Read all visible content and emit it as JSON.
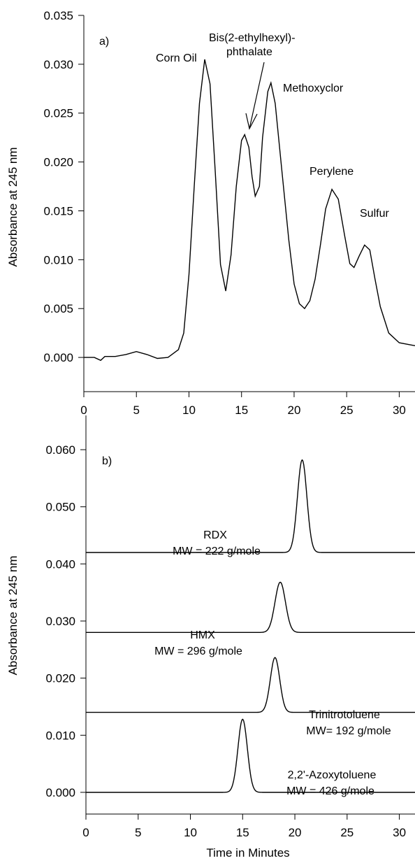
{
  "chart_data": [
    {
      "type": "line",
      "panel_label": "a)",
      "xlabel": "",
      "ylabel": "Absorbance at 245 nm",
      "xlim": [
        0,
        31.5
      ],
      "ylim": [
        -0.0035,
        0.035
      ],
      "xticks": [
        "0",
        "5",
        "10",
        "15",
        "20",
        "25",
        "30"
      ],
      "yticks": [
        "0.000",
        "0.005",
        "0.010",
        "0.015",
        "0.020",
        "0.025",
        "0.030",
        "0.035"
      ],
      "series": [
        {
          "x": [
            0,
            1,
            1.6,
            2,
            3,
            4,
            5,
            6,
            7,
            8,
            9,
            9.5,
            10,
            10.5,
            11,
            11.5,
            12,
            12.5,
            13,
            13.5,
            14,
            14.5,
            15,
            15.3,
            15.7,
            16,
            16.3,
            16.7,
            17,
            17.5,
            17.8,
            18.2,
            18.8,
            19.5,
            20,
            20.5,
            21,
            21.5,
            22,
            22.5,
            23,
            23.6,
            24.2,
            24.8,
            25.3,
            25.7,
            26.2,
            26.7,
            27.2,
            27.7,
            28.2,
            29,
            30,
            31.5
          ],
          "y": [
            0.0,
            0.0,
            -0.0003,
            0.0001,
            0.0001,
            0.0003,
            0.0006,
            0.0003,
            -0.0001,
            0.0,
            0.0008,
            0.0025,
            0.0085,
            0.0175,
            0.026,
            0.0305,
            0.028,
            0.019,
            0.0095,
            0.0068,
            0.0105,
            0.0175,
            0.0222,
            0.0228,
            0.0215,
            0.0185,
            0.0165,
            0.0175,
            0.0225,
            0.0272,
            0.0281,
            0.026,
            0.0195,
            0.012,
            0.0075,
            0.0055,
            0.005,
            0.0058,
            0.008,
            0.0115,
            0.0152,
            0.0172,
            0.0162,
            0.0125,
            0.0096,
            0.0092,
            0.0104,
            0.0115,
            0.011,
            0.008,
            0.0052,
            0.0025,
            0.0015,
            0.0012
          ]
        }
      ],
      "annotations": {
        "corn_oil": "Corn Oil",
        "bis_line1": "Bis(2-ethylhexyl)-",
        "bis_line2": "phthalate",
        "methoxyclor": "Methoxyclor",
        "perylene": "Perylene",
        "sulfur": "Sulfur"
      }
    },
    {
      "type": "line",
      "panel_label": "b)",
      "xlabel": "Time in Minutes",
      "ylabel": "Absorbance at 245 nm",
      "xlim": [
        0,
        31.5
      ],
      "ylim": [
        -0.0038,
        0.066
      ],
      "xticks": [
        "0",
        "5",
        "10",
        "15",
        "20",
        "25",
        "30"
      ],
      "yticks": [
        "0.000",
        "0.010",
        "0.020",
        "0.030",
        "0.040",
        "0.050",
        "0.060"
      ],
      "series": [
        {
          "name": "RDX",
          "mw": "MW = 222 g/mole",
          "baseline": 0.042,
          "center": 20.7,
          "height": 0.0162,
          "width": 0.45
        },
        {
          "name": "HMX",
          "mw": "MW = 296 g/mole",
          "baseline": 0.028,
          "center": 18.6,
          "height": 0.0088,
          "width": 0.5
        },
        {
          "name": "Trinitrotoluene",
          "mw": "MW= 192 g/mole",
          "baseline": 0.014,
          "center": 18.1,
          "height": 0.0096,
          "width": 0.45
        },
        {
          "name": "2,2'-Azoxytoluene",
          "mw": "MW = 426 g/mole",
          "baseline": 0.0,
          "center": 15.0,
          "height": 0.0128,
          "width": 0.45
        }
      ]
    }
  ]
}
